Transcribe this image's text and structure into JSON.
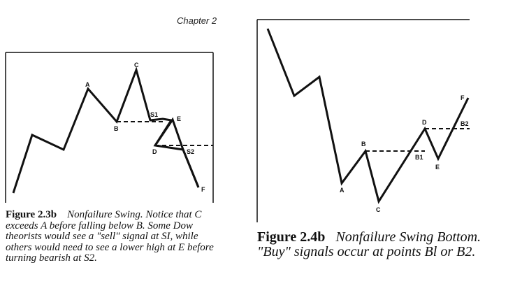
{
  "header": {
    "chapter": "Chapter 2"
  },
  "figure_left": {
    "label": "Figure 2.3b",
    "caption": "Nonfailure Swing. Notice that C exceeds A before falling below B. Some Dow theorists would see a \"sell\" signal at SI, while others would need to see a lower high at E before turning bearish at S2.",
    "points": {
      "A": "A",
      "B": "B",
      "C": "C",
      "D": "D",
      "E": "E",
      "F": "F",
      "S1": "S1",
      "S2": "S2"
    }
  },
  "figure_right": {
    "label": "Figure 2.4b",
    "caption": "Nonfailure Swing Bottom. \"Buy\" signals occur at points Bl or B2.",
    "points": {
      "A": "A",
      "B": "B",
      "C": "C",
      "D": "D",
      "E": "E",
      "F": "F",
      "B1": "B1",
      "B2": "B2"
    }
  }
}
